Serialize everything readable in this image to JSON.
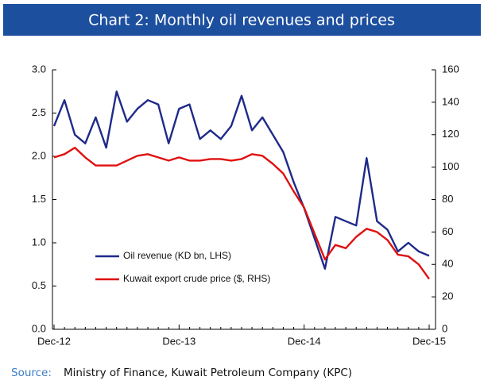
{
  "chart_data": {
    "type": "line",
    "title": "Chart 2: Monthly oil revenues and prices",
    "source_label": "Source:",
    "source": "Ministry of Finance, Kuwait Petroleum Company (KPC)",
    "categories": [
      "Dec-12",
      null,
      null,
      null,
      null,
      null,
      null,
      null,
      null,
      null,
      null,
      null,
      "Dec-13",
      null,
      null,
      null,
      null,
      null,
      null,
      null,
      null,
      null,
      null,
      null,
      "Dec-14",
      null,
      null,
      null,
      null,
      null,
      null,
      null,
      null,
      null,
      null,
      null,
      "Dec-15"
    ],
    "series": [
      {
        "name": "Oil revenue (KD bn, LHS)",
        "color": "#1f2a8a",
        "axis": "y",
        "values": [
          2.35,
          2.65,
          2.25,
          2.15,
          2.45,
          2.1,
          2.75,
          2.4,
          2.55,
          2.65,
          2.6,
          2.15,
          2.55,
          2.6,
          2.2,
          2.3,
          2.2,
          2.35,
          2.7,
          2.3,
          2.45,
          2.25,
          2.05,
          1.7,
          1.4,
          1.05,
          0.7,
          1.3,
          1.25,
          1.2,
          1.98,
          1.25,
          1.15,
          0.9,
          1.0,
          0.9,
          0.85
        ]
      },
      {
        "name": "Kuwait export crude price ($, RHS)",
        "color": "#e01010",
        "axis": "y2",
        "values": [
          106,
          108,
          112,
          106,
          101,
          101,
          101,
          104,
          107,
          108,
          106,
          104,
          106,
          104,
          104,
          105,
          105,
          104,
          105,
          108,
          107,
          102,
          96,
          85,
          75,
          59,
          43,
          52,
          50,
          57,
          62,
          60,
          55,
          46,
          45,
          40,
          31
        ]
      }
    ],
    "ylim": [
      0,
      3
    ],
    "yticks": [
      {
        "value": 0,
        "label": "0.0"
      },
      0.5,
      {
        "value": 1,
        "label": "1.0"
      },
      1.5,
      {
        "value": 2,
        "label": "2.0"
      },
      2.5,
      {
        "value": 3,
        "label": "3.0"
      }
    ],
    "y2lim": [
      0,
      160
    ],
    "y2ticks": [
      0,
      20,
      40,
      60,
      80,
      100,
      120,
      140,
      160
    ],
    "grid": false
  }
}
